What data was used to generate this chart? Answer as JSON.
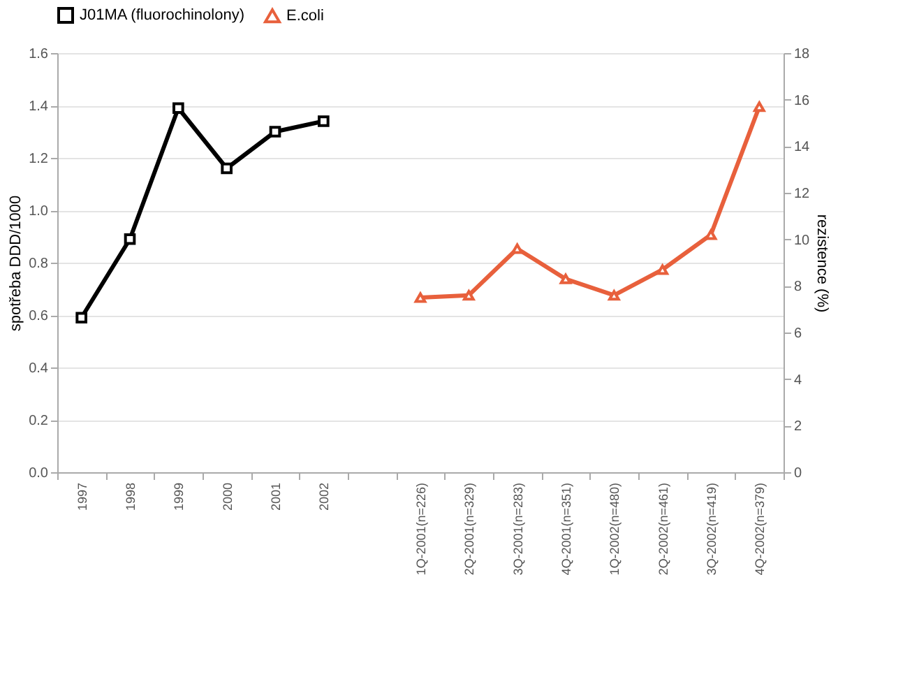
{
  "chart_data": {
    "type": "line",
    "ylabel": "spotřeba DDD/1000",
    "y2label": "rezistence (%)",
    "categories": [
      "1997",
      "1998",
      "1999",
      "2000",
      "2001",
      "2002",
      null,
      "1Q-2001(n=226)",
      "2Q-2001(n=329)",
      "3Q-2001(n=283)",
      "4Q-2001(n=351)",
      "1Q-2002(n=480)",
      "2Q-2002(n=461)",
      "3Q-2002(n=419)",
      "4Q-2002(n=379)"
    ],
    "series": [
      {
        "name": "J01MA (fluorochinolony)",
        "color": "#000000",
        "marker": "square",
        "values": [
          0.59,
          0.89,
          1.39,
          1.16,
          1.3,
          1.34,
          null,
          null,
          null,
          null,
          null,
          null,
          null,
          null,
          null
        ]
      },
      {
        "name": "E.coli",
        "color": "#e8603c",
        "marker": "triangle",
        "axis": "y2",
        "values": [
          null,
          null,
          null,
          null,
          null,
          null,
          null,
          7.5,
          7.6,
          9.6,
          8.3,
          7.6,
          8.7,
          10.2,
          15.7
        ]
      }
    ],
    "ylim": [
      0,
      1.6
    ],
    "yticks": [
      {
        "value": 0,
        "label": "0.0"
      },
      0.2,
      0.4,
      0.6,
      0.8,
      {
        "value": 1,
        "label": "1.0"
      },
      1.2,
      1.4,
      1.6
    ],
    "y2lim": [
      0,
      18
    ],
    "y2ticks": [
      0,
      2,
      4,
      6,
      8,
      10,
      12,
      14,
      16,
      18
    ],
    "grid": "y",
    "legend": "top",
    "line_style": "solid"
  }
}
